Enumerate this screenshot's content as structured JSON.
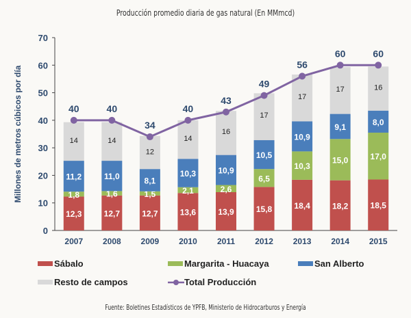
{
  "chart_data": {
    "type": "bar",
    "stacked": true,
    "title": "Producción promedio diaria de gas natural (En MMmcd)",
    "xlabel": "",
    "ylabel": "Millones de metros cúbicos por día",
    "ylim": [
      0,
      70
    ],
    "yticks": [
      0,
      10,
      20,
      30,
      40,
      50,
      60,
      70
    ],
    "categories": [
      "2007",
      "2008",
      "2009",
      "2010",
      "2011",
      "2012",
      "2013",
      "2014",
      "2015"
    ],
    "series": [
      {
        "name": "Sábalo",
        "color": "#c0504d",
        "values": [
          12.3,
          12.7,
          12.7,
          13.6,
          13.9,
          15.8,
          18.4,
          18.2,
          18.5
        ],
        "labels": [
          "12,3",
          "12,7",
          "12,7",
          "13,6",
          "13,9",
          "15,8",
          "18,4",
          "18,2",
          "18,5"
        ]
      },
      {
        "name": "Margarita - Huacaya",
        "color": "#9bbb59",
        "values": [
          1.8,
          1.6,
          1.5,
          2.1,
          2.6,
          6.5,
          10.3,
          15.0,
          17.0
        ],
        "labels": [
          "1,8",
          "1,6",
          "1,5",
          "2,1",
          "2,6",
          "6,5",
          "10,3",
          "15,0",
          "17,0"
        ]
      },
      {
        "name": "San Alberto",
        "color": "#4a7ebb",
        "values": [
          11.2,
          11.0,
          8.1,
          10.3,
          10.9,
          10.5,
          10.9,
          9.1,
          8.0
        ],
        "labels": [
          "11,2",
          "11,0",
          "8,1",
          "10,3",
          "10,9",
          "10,5",
          "10,9",
          "9,1",
          "8,0"
        ]
      },
      {
        "name": "Resto de campos",
        "color": "#d9d9d9",
        "values": [
          14,
          14,
          12,
          14,
          16,
          17,
          17,
          17,
          16
        ],
        "labels": [
          "14",
          "14",
          "12",
          "14",
          "16",
          "17",
          "17",
          "17",
          "16"
        ]
      }
    ],
    "line": {
      "name": "Total Producción",
      "color": "#8064a2",
      "values": [
        40,
        40,
        34,
        40,
        43,
        49,
        56,
        60,
        60
      ],
      "labels": [
        "40",
        "40",
        "34",
        "40",
        "43",
        "49",
        "56",
        "60",
        "60"
      ]
    },
    "grid": false,
    "legend": "bottom"
  },
  "source": "Fuente: Boletines Estadísticos de YPFB, Ministerio de Hidrocarburos y Energía"
}
